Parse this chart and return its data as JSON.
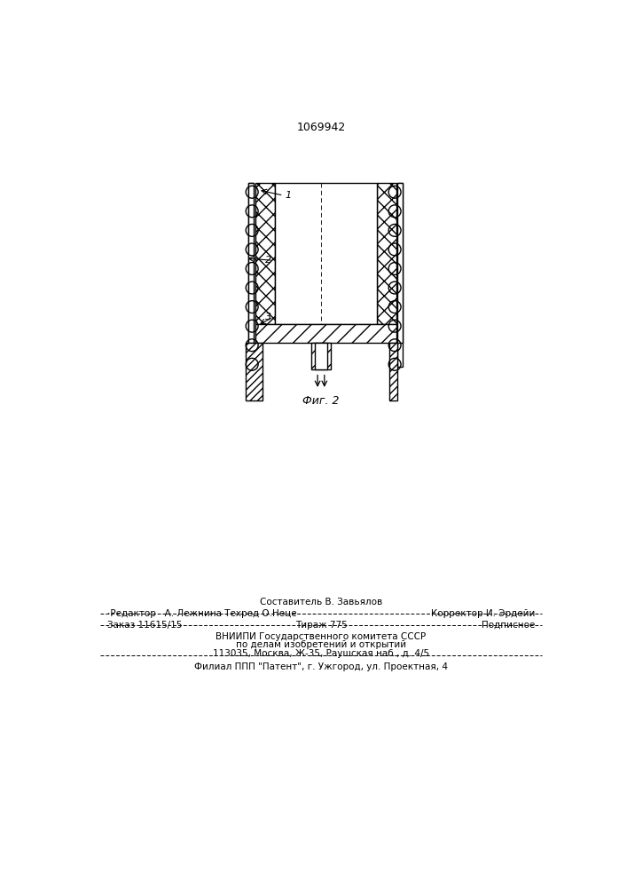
{
  "patent_number": "1069942",
  "fig_label": "Фиг. 2",
  "bg_color": "#ffffff",
  "line_color": "#000000",
  "footer": {
    "line0": "Составитель В. Завьялов",
    "line1_left": "Редактор   А. Лежнина Техред О.Неце",
    "line1_right": "Корректор И. Эрдейи",
    "line2_left": "Заказ 11615/15",
    "line2_mid": "Тираж 775",
    "line2_right": "Подписное",
    "line3": "ВНИИПИ Государственного комитета СССР",
    "line4": "по делам изобретений и открытий",
    "line5": "113035, Москва, Ж-35, Раушская наб., д. 4/5",
    "line6": "Филиал ППП \"Патент\", г. Ужгород, ул. Проектная, 4"
  }
}
